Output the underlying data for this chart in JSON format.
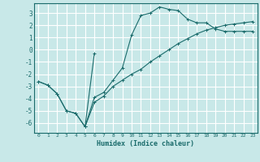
{
  "title": "",
  "xlabel": "Humidex (Indice chaleur)",
  "xlim": [
    -0.5,
    23.5
  ],
  "ylim": [
    -6.8,
    3.8
  ],
  "yticks": [
    -6,
    -5,
    -4,
    -3,
    -2,
    -1,
    0,
    1,
    2,
    3
  ],
  "xticks": [
    0,
    1,
    2,
    3,
    4,
    5,
    6,
    7,
    8,
    9,
    10,
    11,
    12,
    13,
    14,
    15,
    16,
    17,
    18,
    19,
    20,
    21,
    22,
    23
  ],
  "background_color": "#c8e8e8",
  "line_color": "#1a6b6b",
  "grid_color": "#ffffff",
  "line1_x": [
    0,
    1,
    2,
    3,
    4,
    5,
    6,
    7,
    8,
    9,
    10,
    11,
    12,
    13,
    14,
    15,
    16,
    17,
    18,
    19,
    20,
    21,
    22,
    23
  ],
  "line1_y": [
    -2.6,
    -2.9,
    -3.6,
    -5.0,
    -5.2,
    -6.3,
    -4.3,
    -3.8,
    -3.0,
    -2.5,
    -2.0,
    -1.6,
    -1.0,
    -0.5,
    0.0,
    0.5,
    0.9,
    1.3,
    1.6,
    1.8,
    2.0,
    2.1,
    2.2,
    2.3
  ],
  "line2_x": [
    0,
    1,
    2,
    3,
    4,
    5,
    6,
    7,
    8,
    9,
    10,
    11,
    12,
    13,
    14,
    15,
    16,
    17,
    18,
    19,
    20,
    21,
    22,
    23
  ],
  "line2_y": [
    -2.6,
    -2.9,
    -3.6,
    -5.0,
    -5.2,
    -6.3,
    -3.9,
    -3.5,
    -2.5,
    -1.5,
    1.2,
    2.8,
    3.0,
    3.5,
    3.3,
    3.2,
    2.5,
    2.2,
    2.2,
    1.7,
    1.5,
    1.5,
    1.5,
    1.5
  ],
  "line3_x": [
    5,
    6
  ],
  "line3_y": [
    -6.3,
    -0.3
  ]
}
